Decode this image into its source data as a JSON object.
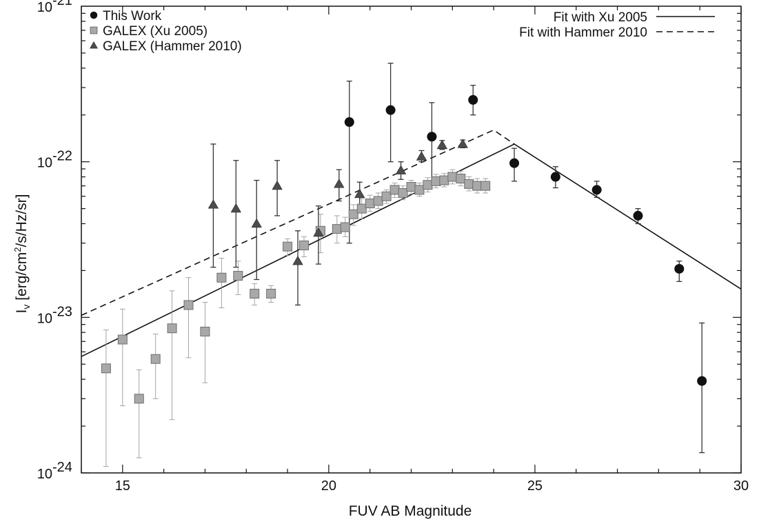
{
  "chart_data": {
    "type": "scatter",
    "xlabel": "FUV AB Magnitude",
    "ylabel": "I_v [erg/cm²/s/Hz/sr]",
    "ylabel_main": "I",
    "ylabel_sub": "v",
    "ylabel_rest": " [erg/cm",
    "ylabel_sup": "2",
    "ylabel_tail": "/s/Hz/sr]",
    "xlim": [
      14,
      30
    ],
    "ylim": [
      1e-24,
      1e-21
    ],
    "yscale": "log",
    "x_ticks": [
      15,
      20,
      25,
      30
    ],
    "x_tick_labels": [
      "15",
      "20",
      "25",
      "30"
    ],
    "y_tick_labels": [
      {
        "exp": -24,
        "base": "10",
        "power": "-24"
      },
      {
        "exp": -23,
        "base": "10",
        "power": "-23"
      },
      {
        "exp": -22,
        "base": "10",
        "power": "-22"
      },
      {
        "exp": -21,
        "base": "10",
        "power": "-21"
      }
    ],
    "grid": false,
    "legend_left_placement": "top-left",
    "legend_right_placement": "top-right",
    "series": [
      {
        "name": "This Work",
        "marker": "circle",
        "color": "#111111",
        "points": [
          {
            "x": 20.5,
            "y": 1.8e-22,
            "lo": 3e-23,
            "hi": 3.3e-22
          },
          {
            "x": 21.5,
            "y": 2.15e-22,
            "lo": 1e-22,
            "hi": 4.3e-22
          },
          {
            "x": 22.5,
            "y": 1.45e-22,
            "lo": 7.5e-23,
            "hi": 2.4e-22
          },
          {
            "x": 23.5,
            "y": 2.5e-22,
            "lo": 2e-22,
            "hi": 3.1e-22
          },
          {
            "x": 24.5,
            "y": 9.8e-23,
            "lo": 7.5e-23,
            "hi": 1.22e-22
          },
          {
            "x": 25.5,
            "y": 8e-23,
            "lo": 6.8e-23,
            "hi": 9.3e-23
          },
          {
            "x": 26.5,
            "y": 6.6e-23,
            "lo": 5.9e-23,
            "hi": 7.5e-23
          },
          {
            "x": 27.5,
            "y": 4.5e-23,
            "lo": 4e-23,
            "hi": 5e-23
          },
          {
            "x": 28.5,
            "y": 2.05e-23,
            "lo": 1.7e-23,
            "hi": 2.3e-23
          },
          {
            "x": 29.05,
            "y": 3.9e-24,
            "lo": 1.35e-24,
            "hi": 9.2e-24
          }
        ]
      },
      {
        "name": "GALEX (Xu 2005)",
        "marker": "square",
        "color": "#8a8a8a",
        "points": [
          {
            "x": 14.6,
            "y": 4.7e-24,
            "lo": 1.1e-24,
            "hi": 8.3e-24
          },
          {
            "x": 15.0,
            "y": 7.2e-24,
            "lo": 2.7e-24,
            "hi": 1.13e-23
          },
          {
            "x": 15.4,
            "y": 3e-24,
            "lo": 1.25e-24,
            "hi": 4.6e-24
          },
          {
            "x": 15.8,
            "y": 5.4e-24,
            "lo": 3e-24,
            "hi": 7.8e-24
          },
          {
            "x": 16.2,
            "y": 8.5e-24,
            "lo": 2.2e-24,
            "hi": 1.48e-23
          },
          {
            "x": 16.6,
            "y": 1.2e-23,
            "lo": 5.5e-24,
            "hi": 1.8e-23
          },
          {
            "x": 17.0,
            "y": 8.1e-24,
            "lo": 3.8e-24,
            "hi": 1.25e-23
          },
          {
            "x": 17.4,
            "y": 1.8e-23,
            "lo": 1.15e-23,
            "hi": 2.4e-23
          },
          {
            "x": 17.8,
            "y": 1.85e-23,
            "lo": 1.4e-23,
            "hi": 2.3e-23
          },
          {
            "x": 18.2,
            "y": 1.42e-23,
            "lo": 1.2e-23,
            "hi": 1.65e-23
          },
          {
            "x": 18.6,
            "y": 1.42e-23,
            "lo": 1.25e-23,
            "hi": 1.6e-23
          },
          {
            "x": 19.0,
            "y": 2.85e-23,
            "lo": 2.5e-23,
            "hi": 3.2e-23
          },
          {
            "x": 19.4,
            "y": 2.9e-23,
            "lo": 2.45e-23,
            "hi": 3.3e-23
          },
          {
            "x": 19.8,
            "y": 3.6e-23,
            "lo": 2.6e-23,
            "hi": 4.6e-23
          },
          {
            "x": 20.2,
            "y": 3.7e-23,
            "lo": 3e-23,
            "hi": 4.5e-23
          },
          {
            "x": 20.4,
            "y": 3.8e-23,
            "lo": 3.3e-23,
            "hi": 4.4e-23
          },
          {
            "x": 20.6,
            "y": 4.6e-23,
            "lo": 3.9e-23,
            "hi": 5.3e-23
          },
          {
            "x": 20.8,
            "y": 5e-23,
            "lo": 4.3e-23,
            "hi": 5.8e-23
          },
          {
            "x": 21.0,
            "y": 5.4e-23,
            "lo": 4.8e-23,
            "hi": 6.1e-23
          },
          {
            "x": 21.2,
            "y": 5.6e-23,
            "lo": 5e-23,
            "hi": 6.3e-23
          },
          {
            "x": 21.4,
            "y": 6e-23,
            "lo": 5.4e-23,
            "hi": 6.6e-23
          },
          {
            "x": 21.6,
            "y": 6.6e-23,
            "lo": 5.9e-23,
            "hi": 7.3e-23
          },
          {
            "x": 21.8,
            "y": 6.3e-23,
            "lo": 5.7e-23,
            "hi": 7e-23
          },
          {
            "x": 22.0,
            "y": 6.9e-23,
            "lo": 6.2e-23,
            "hi": 7.6e-23
          },
          {
            "x": 22.2,
            "y": 6.6e-23,
            "lo": 6e-23,
            "hi": 7.3e-23
          },
          {
            "x": 22.4,
            "y": 7.1e-23,
            "lo": 6.4e-23,
            "hi": 7.9e-23
          },
          {
            "x": 22.6,
            "y": 7.5e-23,
            "lo": 6.8e-23,
            "hi": 8.3e-23
          },
          {
            "x": 22.8,
            "y": 7.6e-23,
            "lo": 6.9e-23,
            "hi": 8.4e-23
          },
          {
            "x": 23.0,
            "y": 8e-23,
            "lo": 7.2e-23,
            "hi": 8.9e-23
          },
          {
            "x": 23.2,
            "y": 7.8e-23,
            "lo": 7e-23,
            "hi": 8.7e-23
          },
          {
            "x": 23.4,
            "y": 7.2e-23,
            "lo": 6.5e-23,
            "hi": 8e-23
          },
          {
            "x": 23.6,
            "y": 7e-23,
            "lo": 6.3e-23,
            "hi": 7.8e-23
          },
          {
            "x": 23.8,
            "y": 7e-23,
            "lo": 6.3e-23,
            "hi": 7.8e-23
          }
        ]
      },
      {
        "name": "GALEX (Hammer 2010)",
        "marker": "triangle",
        "color": "#555555",
        "points": [
          {
            "x": 17.2,
            "y": 5.3e-23,
            "lo": 2.1e-23,
            "hi": 1.3e-22
          },
          {
            "x": 17.75,
            "y": 5e-23,
            "lo": 2.1e-23,
            "hi": 1.02e-22
          },
          {
            "x": 18.25,
            "y": 4e-23,
            "lo": 1.75e-23,
            "hi": 7.6e-23
          },
          {
            "x": 18.75,
            "y": 7e-23,
            "lo": 4.5e-23,
            "hi": 1.02e-22
          },
          {
            "x": 19.25,
            "y": 2.3e-23,
            "lo": 1.2e-23,
            "hi": 3.6e-23
          },
          {
            "x": 19.75,
            "y": 3.5e-23,
            "lo": 2.2e-23,
            "hi": 5.2e-23
          },
          {
            "x": 20.25,
            "y": 7.2e-23,
            "lo": 5.6e-23,
            "hi": 8.9e-23
          },
          {
            "x": 20.75,
            "y": 6.2e-23,
            "lo": 5.2e-23,
            "hi": 7.4e-23
          },
          {
            "x": 21.75,
            "y": 8.8e-23,
            "lo": 7.7e-23,
            "hi": 1e-22
          },
          {
            "x": 22.25,
            "y": 1.08e-22,
            "lo": 1e-22,
            "hi": 1.18e-22
          },
          {
            "x": 22.75,
            "y": 1.28e-22,
            "lo": 1.2e-22,
            "hi": 1.37e-22
          },
          {
            "x": 23.25,
            "y": 1.3e-22,
            "lo": 1.23e-22,
            "hi": 1.38e-22
          }
        ]
      }
    ],
    "fits": [
      {
        "name": "Fit with Xu 2005",
        "style": "solid",
        "points": [
          [
            14,
            5.6e-24
          ],
          [
            24.5,
            1.3e-22
          ],
          [
            30,
            1.52e-23
          ]
        ]
      },
      {
        "name": "Fit with Hammer 2010",
        "style": "dashed",
        "points": [
          [
            14,
            1.03e-23
          ],
          [
            24.0,
            1.6e-22
          ],
          [
            24.5,
            1.3e-22
          ]
        ]
      }
    ]
  }
}
